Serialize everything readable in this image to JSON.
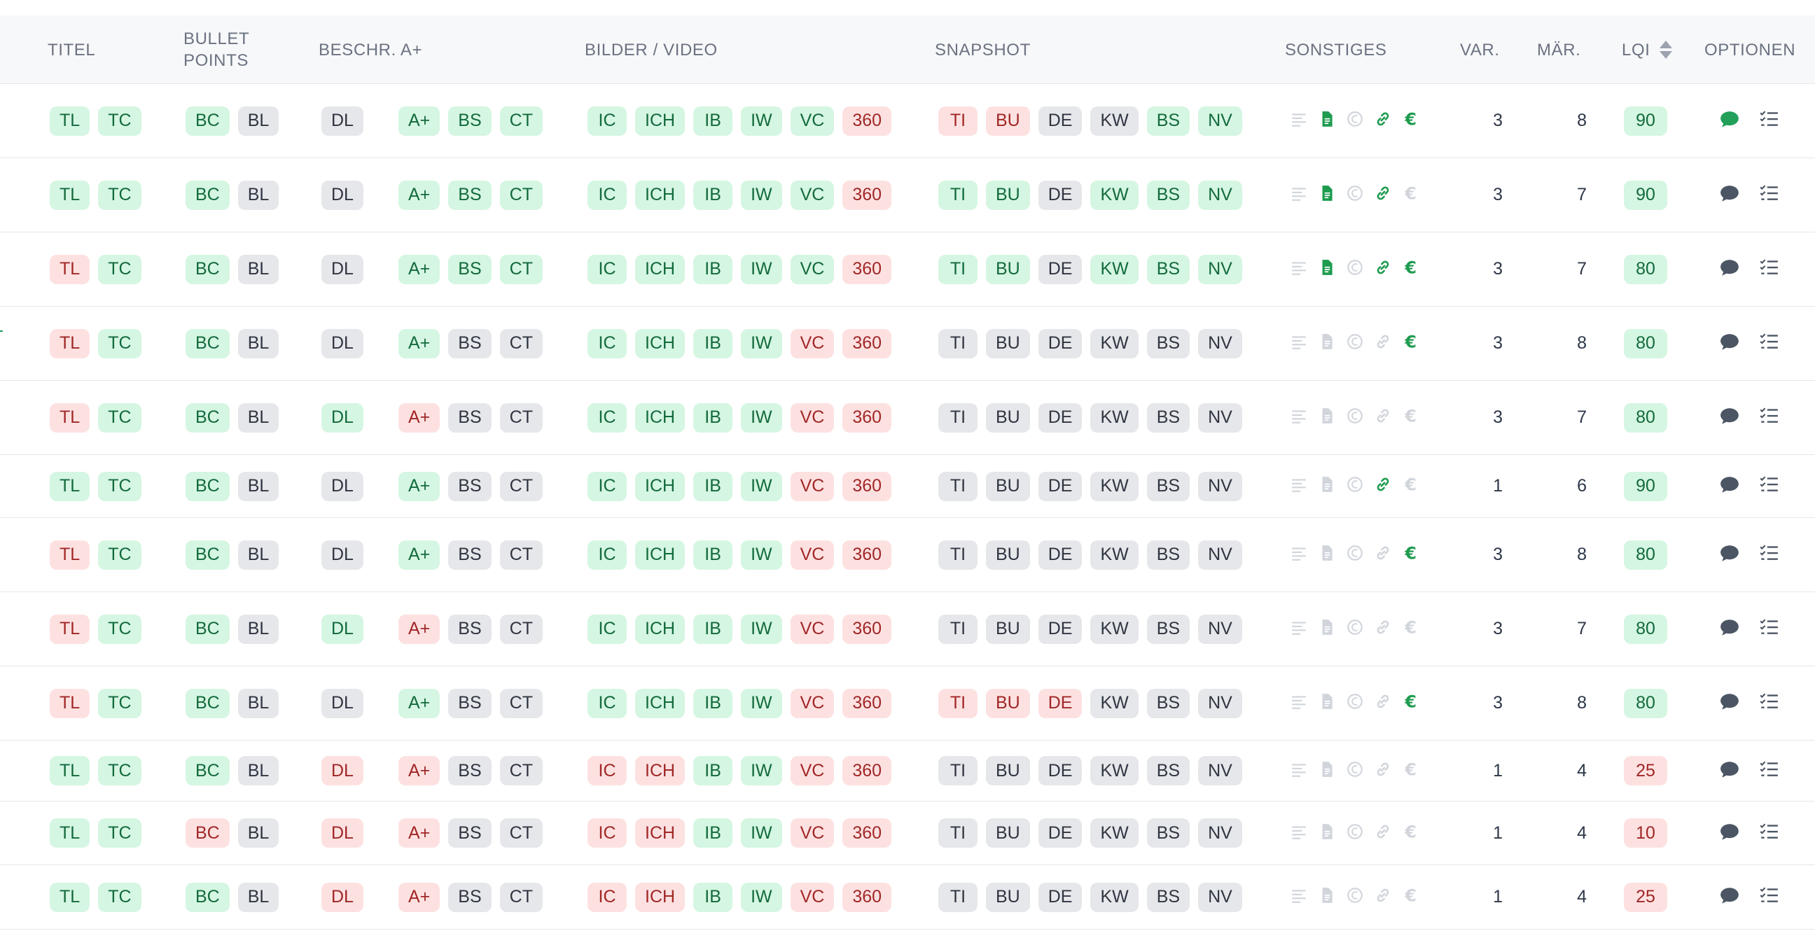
{
  "header": {
    "titel": "TITEL",
    "bullet_points_1": "BULLET",
    "bullet_points_2": "POINTS",
    "beschr": "BESCHR. A+",
    "bilder": "BILDER / VIDEO",
    "snapshot": "SNAPSHOT",
    "sonstiges": "SONSTIGES",
    "var": "VAR.",
    "maer": "MÄR.",
    "lqi": "LQI",
    "optionen": "OPTIONEN"
  },
  "colors": {
    "green_bg": "#d5f6e2",
    "red_bg": "#fde1e1",
    "neutral_bg": "#e6e7ea",
    "green_icon": "#1e9b4f",
    "gray_icon": "#d1d5db"
  },
  "rows": [
    {
      "titel": [
        "TL:g",
        "TC:g"
      ],
      "bullet": [
        "BC:g",
        "BL:n"
      ],
      "dl": "DL:n",
      "aplus": [
        "A+:g",
        "BS:g",
        "CT:g"
      ],
      "bilder": [
        "IC:g",
        "ICH:g",
        "IB:g",
        "IW:g",
        "VC:g",
        "360:r"
      ],
      "snap": [
        "TI:r",
        "BU:r",
        "DE:n",
        "KW:n",
        "BS:g",
        "NV:g"
      ],
      "sonst": [
        0,
        1,
        0,
        1,
        1
      ],
      "var": "3",
      "maer": "8",
      "lqi": "90",
      "lqi_c": "g",
      "comment_green": true
    },
    {
      "titel": [
        "TL:g",
        "TC:g"
      ],
      "bullet": [
        "BC:g",
        "BL:n"
      ],
      "dl": "DL:n",
      "aplus": [
        "A+:g",
        "BS:g",
        "CT:g"
      ],
      "bilder": [
        "IC:g",
        "ICH:g",
        "IB:g",
        "IW:g",
        "VC:g",
        "360:r"
      ],
      "snap": [
        "TI:g",
        "BU:g",
        "DE:n",
        "KW:g",
        "BS:g",
        "NV:g"
      ],
      "sonst": [
        0,
        1,
        0,
        1,
        0
      ],
      "var": "3",
      "maer": "7",
      "lqi": "90",
      "lqi_c": "g",
      "comment_green": false
    },
    {
      "titel": [
        "TL:r",
        "TC:g"
      ],
      "bullet": [
        "BC:g",
        "BL:n"
      ],
      "dl": "DL:n",
      "aplus": [
        "A+:g",
        "BS:g",
        "CT:g"
      ],
      "bilder": [
        "IC:g",
        "ICH:g",
        "IB:g",
        "IW:g",
        "VC:g",
        "360:r"
      ],
      "snap": [
        "TI:g",
        "BU:g",
        "DE:n",
        "KW:g",
        "BS:g",
        "NV:g"
      ],
      "sonst": [
        0,
        1,
        0,
        1,
        1
      ],
      "var": "3",
      "maer": "7",
      "lqi": "80",
      "lqi_c": "g",
      "comment_green": false
    },
    {
      "titel": [
        "TL:r",
        "TC:g"
      ],
      "bullet": [
        "BC:g",
        "BL:n"
      ],
      "dl": "DL:n",
      "aplus": [
        "A+:g",
        "BS:n",
        "CT:n"
      ],
      "bilder": [
        "IC:g",
        "ICH:g",
        "IB:g",
        "IW:g",
        "VC:r",
        "360:r"
      ],
      "snap": [
        "TI:n",
        "BU:n",
        "DE:n",
        "KW:n",
        "BS:n",
        "NV:n"
      ],
      "sonst": [
        0,
        0,
        0,
        0,
        1
      ],
      "var": "3",
      "maer": "8",
      "lqi": "80",
      "lqi_c": "g",
      "comment_green": false
    },
    {
      "titel": [
        "TL:r",
        "TC:g"
      ],
      "bullet": [
        "BC:g",
        "BL:n"
      ],
      "dl": "DL:g",
      "aplus": [
        "A+:r",
        "BS:n",
        "CT:n"
      ],
      "bilder": [
        "IC:g",
        "ICH:g",
        "IB:g",
        "IW:g",
        "VC:r",
        "360:r"
      ],
      "snap": [
        "TI:n",
        "BU:n",
        "DE:n",
        "KW:n",
        "BS:n",
        "NV:n"
      ],
      "sonst": [
        0,
        0,
        0,
        0,
        0
      ],
      "var": "3",
      "maer": "7",
      "lqi": "80",
      "lqi_c": "g",
      "comment_green": false
    },
    {
      "titel": [
        "TL:g",
        "TC:g"
      ],
      "bullet": [
        "BC:g",
        "BL:n"
      ],
      "dl": "DL:n",
      "aplus": [
        "A+:g",
        "BS:n",
        "CT:n"
      ],
      "bilder": [
        "IC:g",
        "ICH:g",
        "IB:g",
        "IW:g",
        "VC:r",
        "360:r"
      ],
      "snap": [
        "TI:n",
        "BU:n",
        "DE:n",
        "KW:n",
        "BS:n",
        "NV:n"
      ],
      "sonst": [
        0,
        0,
        0,
        1,
        0
      ],
      "var": "1",
      "maer": "6",
      "lqi": "90",
      "lqi_c": "g",
      "comment_green": false
    },
    {
      "titel": [
        "TL:r",
        "TC:g"
      ],
      "bullet": [
        "BC:g",
        "BL:n"
      ],
      "dl": "DL:n",
      "aplus": [
        "A+:g",
        "BS:n",
        "CT:n"
      ],
      "bilder": [
        "IC:g",
        "ICH:g",
        "IB:g",
        "IW:g",
        "VC:r",
        "360:r"
      ],
      "snap": [
        "TI:n",
        "BU:n",
        "DE:n",
        "KW:n",
        "BS:n",
        "NV:n"
      ],
      "sonst": [
        0,
        0,
        0,
        0,
        1
      ],
      "var": "3",
      "maer": "8",
      "lqi": "80",
      "lqi_c": "g",
      "comment_green": false
    },
    {
      "titel": [
        "TL:r",
        "TC:g"
      ],
      "bullet": [
        "BC:g",
        "BL:n"
      ],
      "dl": "DL:g",
      "aplus": [
        "A+:r",
        "BS:n",
        "CT:n"
      ],
      "bilder": [
        "IC:g",
        "ICH:g",
        "IB:g",
        "IW:g",
        "VC:r",
        "360:r"
      ],
      "snap": [
        "TI:n",
        "BU:n",
        "DE:n",
        "KW:n",
        "BS:n",
        "NV:n"
      ],
      "sonst": [
        0,
        0,
        0,
        0,
        0
      ],
      "var": "3",
      "maer": "7",
      "lqi": "80",
      "lqi_c": "g",
      "comment_green": false
    },
    {
      "titel": [
        "TL:r",
        "TC:g"
      ],
      "bullet": [
        "BC:g",
        "BL:n"
      ],
      "dl": "DL:n",
      "aplus": [
        "A+:g",
        "BS:n",
        "CT:n"
      ],
      "bilder": [
        "IC:g",
        "ICH:g",
        "IB:g",
        "IW:g",
        "VC:r",
        "360:r"
      ],
      "snap": [
        "TI:r",
        "BU:r",
        "DE:r",
        "KW:n",
        "BS:n",
        "NV:n"
      ],
      "sonst": [
        0,
        0,
        0,
        0,
        1
      ],
      "var": "3",
      "maer": "8",
      "lqi": "80",
      "lqi_c": "g",
      "comment_green": false
    },
    {
      "titel": [
        "TL:g",
        "TC:g"
      ],
      "bullet": [
        "BC:g",
        "BL:n"
      ],
      "dl": "DL:r",
      "aplus": [
        "A+:r",
        "BS:n",
        "CT:n"
      ],
      "bilder": [
        "IC:r",
        "ICH:r",
        "IB:g",
        "IW:g",
        "VC:r",
        "360:r"
      ],
      "snap": [
        "TI:n",
        "BU:n",
        "DE:n",
        "KW:n",
        "BS:n",
        "NV:n"
      ],
      "sonst": [
        0,
        0,
        0,
        0,
        0
      ],
      "var": "1",
      "maer": "4",
      "lqi": "25",
      "lqi_c": "r",
      "comment_green": false
    },
    {
      "titel": [
        "TL:g",
        "TC:g"
      ],
      "bullet": [
        "BC:r",
        "BL:n"
      ],
      "dl": "DL:r",
      "aplus": [
        "A+:r",
        "BS:n",
        "CT:n"
      ],
      "bilder": [
        "IC:r",
        "ICH:r",
        "IB:g",
        "IW:g",
        "VC:r",
        "360:r"
      ],
      "snap": [
        "TI:n",
        "BU:n",
        "DE:n",
        "KW:n",
        "BS:n",
        "NV:n"
      ],
      "sonst": [
        0,
        0,
        0,
        0,
        0
      ],
      "var": "1",
      "maer": "4",
      "lqi": "10",
      "lqi_c": "r",
      "comment_green": false
    },
    {
      "titel": [
        "TL:g",
        "TC:g"
      ],
      "bullet": [
        "BC:g",
        "BL:n"
      ],
      "dl": "DL:r",
      "aplus": [
        "A+:r",
        "BS:n",
        "CT:n"
      ],
      "bilder": [
        "IC:r",
        "ICH:r",
        "IB:g",
        "IW:g",
        "VC:r",
        "360:r"
      ],
      "snap": [
        "TI:n",
        "BU:n",
        "DE:n",
        "KW:n",
        "BS:n",
        "NV:n"
      ],
      "sonst": [
        0,
        0,
        0,
        0,
        0
      ],
      "var": "1",
      "maer": "4",
      "lqi": "25",
      "lqi_c": "r",
      "comment_green": false
    }
  ]
}
